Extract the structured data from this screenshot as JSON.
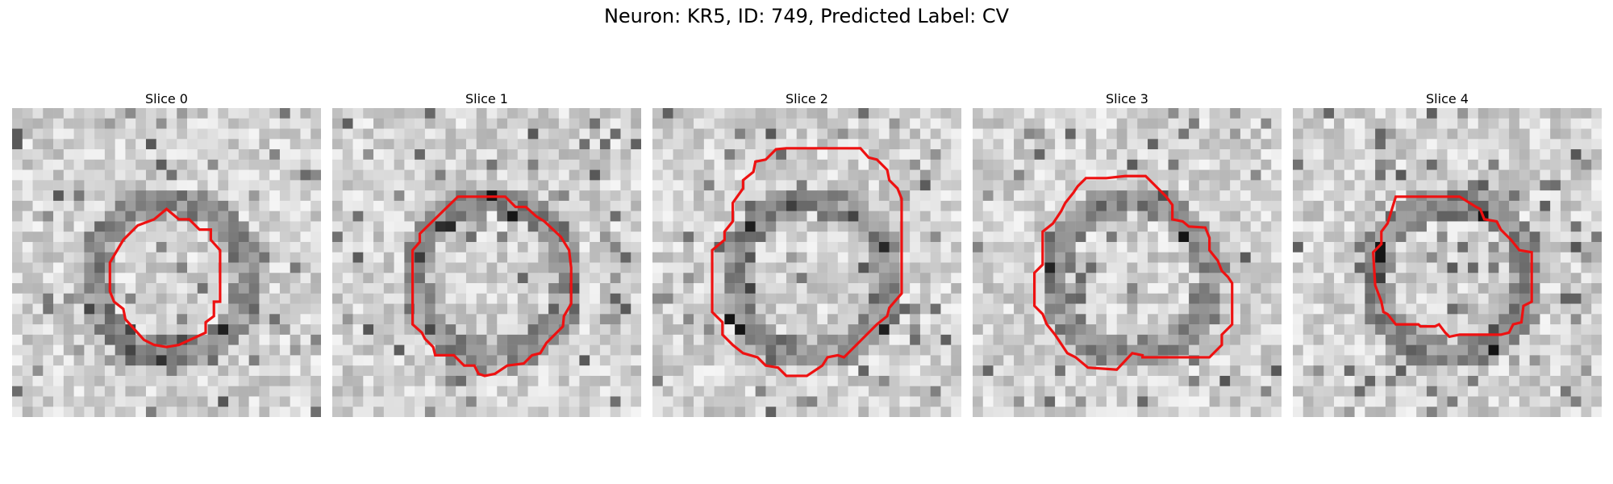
{
  "figure": {
    "title": "Neuron: KR5, ID: 749, Predicted Label: CV",
    "contour_color": "#ee1111",
    "panels": [
      {
        "title": "Slice 0",
        "contour_size": "small",
        "seed": 11
      },
      {
        "title": "Slice 1",
        "contour_size": "medium",
        "seed": 23
      },
      {
        "title": "Slice 2",
        "contour_size": "large",
        "seed": 37
      },
      {
        "title": "Slice 3",
        "contour_size": "medium",
        "seed": 51
      },
      {
        "title": "Slice 4",
        "contour_size": "medium",
        "seed": 67
      }
    ]
  }
}
